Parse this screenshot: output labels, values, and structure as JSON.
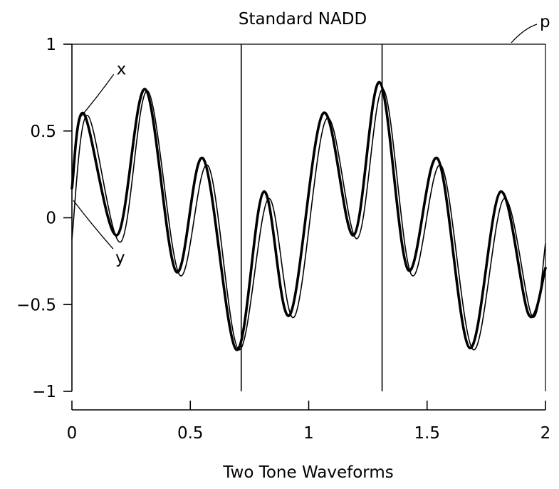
{
  "chart_data": {
    "type": "line",
    "title": "Standard NADD",
    "xlabel": "Two Tone Waveforms",
    "ylabel": "",
    "xlim": [
      0,
      2
    ],
    "ylim": [
      -1,
      1
    ],
    "x_ticks": [
      0,
      0.5,
      1,
      1.5,
      2
    ],
    "x_tick_labels": [
      "0",
      "0.5",
      "1",
      "1.5",
      "2"
    ],
    "y_ticks": [
      1,
      0.5,
      0,
      -0.5,
      -1
    ],
    "y_tick_labels": [
      "1",
      "0.5",
      "0",
      "−0.5",
      "−1"
    ],
    "grid": false,
    "vertical_markers": [
      0.715,
      1.31
    ],
    "annotations": [
      {
        "text": "x",
        "target_series": "x"
      },
      {
        "text": "y",
        "target_series": "y"
      },
      {
        "text": "p",
        "target": "plot-box"
      }
    ],
    "series": [
      {
        "name": "x",
        "stroke": "bold",
        "points": [
          [
            0.0,
            0.17
          ],
          [
            0.05,
            0.6
          ],
          [
            0.19,
            -0.1
          ],
          [
            0.31,
            0.74
          ],
          [
            0.44,
            -0.31
          ],
          [
            0.555,
            0.34
          ],
          [
            0.695,
            -0.76
          ],
          [
            0.81,
            0.15
          ],
          [
            0.92,
            -0.56
          ],
          [
            1.06,
            0.6
          ],
          [
            1.19,
            -0.1
          ],
          [
            1.3,
            0.78
          ],
          [
            1.42,
            -0.3
          ],
          [
            1.545,
            0.34
          ],
          [
            1.68,
            -0.75
          ],
          [
            1.81,
            0.15
          ],
          [
            1.93,
            -0.56
          ],
          [
            2.0,
            -0.29
          ]
        ]
      },
      {
        "name": "y",
        "stroke": "thin",
        "points": [
          [
            0.0,
            -0.12
          ],
          [
            0.065,
            0.59
          ],
          [
            0.205,
            -0.14
          ],
          [
            0.32,
            0.73
          ],
          [
            0.455,
            -0.33
          ],
          [
            0.575,
            0.3
          ],
          [
            0.705,
            -0.76
          ],
          [
            0.83,
            0.11
          ],
          [
            0.94,
            -0.57
          ],
          [
            1.075,
            0.57
          ],
          [
            1.205,
            -0.12
          ],
          [
            1.315,
            0.74
          ],
          [
            1.435,
            -0.33
          ],
          [
            1.56,
            0.3
          ],
          [
            1.695,
            -0.76
          ],
          [
            1.825,
            0.11
          ],
          [
            1.945,
            -0.57
          ],
          [
            2.0,
            -0.15
          ]
        ]
      }
    ]
  }
}
